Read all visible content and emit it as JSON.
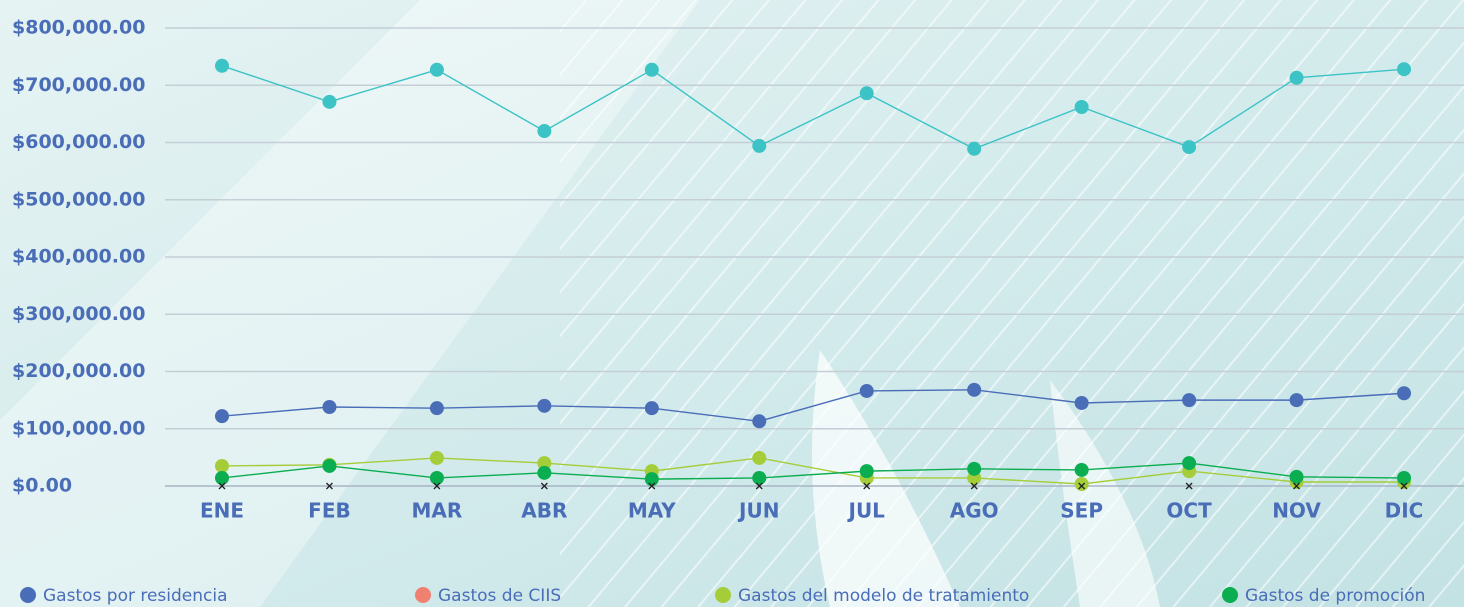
{
  "chart_data": {
    "type": "line",
    "categories": [
      "ENE",
      "FEB",
      "MAR",
      "ABR",
      "MAY",
      "JUN",
      "JUL",
      "AGO",
      "SEP",
      "OCT",
      "NOV",
      "DIC"
    ],
    "series": [
      {
        "color": "#3cc3c6",
        "values": [
          734000,
          671000,
          727000,
          620000,
          727000,
          594000,
          686000,
          589000,
          662000,
          592000,
          713000,
          728000
        ]
      },
      {
        "name": "Gastos por residencia",
        "color": "#4a6db8",
        "values": [
          122000,
          138000,
          136000,
          140000,
          136000,
          113000,
          166000,
          168000,
          145000,
          150000,
          150000,
          162000
        ]
      },
      {
        "name": "Gastos de CIIS",
        "color": "#f08070",
        "values": [
          0,
          0,
          0,
          0,
          0,
          0,
          0,
          0,
          0,
          0,
          0,
          0
        ]
      },
      {
        "name": "Gastos del modelo de tratamiento",
        "color": "#a5cd39",
        "values": [
          35000,
          37000,
          49000,
          40000,
          26000,
          49000,
          14000,
          14000,
          3500,
          26000,
          7000,
          7000
        ]
      },
      {
        "name": "Gastos de promoción",
        "color": "#0aad4f",
        "values": [
          14000,
          35000,
          14000,
          23000,
          12000,
          14000,
          26000,
          30000,
          28000,
          40000,
          16000,
          14000
        ]
      }
    ],
    "ylim": [
      0,
      800000
    ],
    "yticks": [
      {
        "value": 0,
        "label": "$0.00"
      },
      {
        "value": 100000,
        "label": "$100,000.00"
      },
      {
        "value": 200000,
        "label": "$200,000.00"
      },
      {
        "value": 300000,
        "label": "$300,000.00"
      },
      {
        "value": 400000,
        "label": "$400,000.00"
      },
      {
        "value": 500000,
        "label": "$500,000.00"
      },
      {
        "value": 600000,
        "label": "$600,000.00"
      },
      {
        "value": 700000,
        "label": "$700,000.00"
      },
      {
        "value": 800000,
        "label": "$800,000.00"
      }
    ],
    "grid": true
  }
}
